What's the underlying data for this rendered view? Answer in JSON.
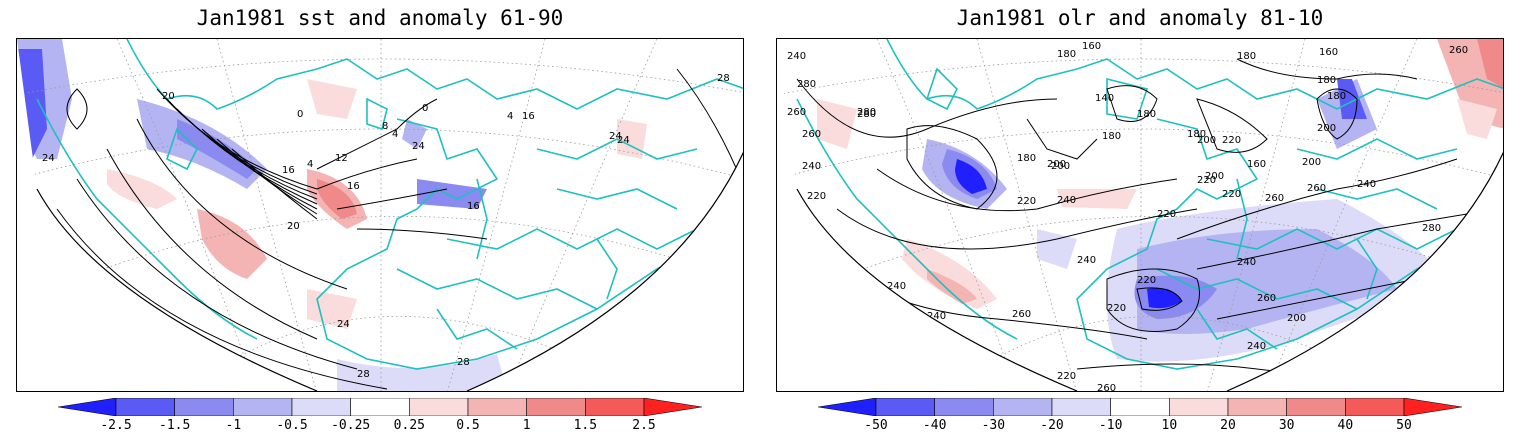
{
  "panels": [
    {
      "title": "Jan1981 sst and anomaly 61-90",
      "contour_labels": [
        "0",
        "4",
        "8",
        "12",
        "16",
        "20",
        "24",
        "28",
        "4",
        "0",
        "16",
        "24",
        "28",
        "20",
        "24",
        "16",
        "24",
        "28",
        "4",
        "16",
        "24"
      ],
      "colorbar": {
        "ticks": [
          "-2.5",
          "-1.5",
          "-1",
          "-0.5",
          "-0.25",
          "0.25",
          "0.5",
          "1",
          "1.5",
          "2.5"
        ],
        "colors": [
          "#2020ff",
          "#5a5af5",
          "#8a8af0",
          "#b4b4f3",
          "#dcdcf8",
          "#ffffff",
          "#fadcdc",
          "#f4b4b4",
          "#f08a8a",
          "#f55a5a",
          "#ff2020"
        ]
      }
    },
    {
      "title": "Jan1981 olr and anomaly 81-10",
      "contour_labels": [
        "240",
        "180",
        "160",
        "180",
        "260",
        "280",
        "280",
        "160",
        "180",
        "200",
        "260",
        "280",
        "140",
        "180",
        "180",
        "260",
        "240",
        "220",
        "200",
        "180",
        "200",
        "220",
        "160",
        "180",
        "200",
        "220",
        "240",
        "260",
        "280",
        "280",
        "200",
        "220",
        "240",
        "240",
        "220",
        "260",
        "240",
        "220",
        "240",
        "260",
        "220",
        "240",
        "260",
        "280",
        "260",
        "220",
        "240",
        "220",
        "260",
        "200",
        "180",
        "200",
        "220"
      ],
      "colorbar": {
        "ticks": [
          "-50",
          "-40",
          "-30",
          "-20",
          "-10",
          "10",
          "20",
          "30",
          "40",
          "50"
        ],
        "colors": [
          "#2020ff",
          "#5a5af5",
          "#8a8af0",
          "#b4b4f3",
          "#dcdcf8",
          "#ffffff",
          "#fadcdc",
          "#f4b4b4",
          "#f08a8a",
          "#f55a5a",
          "#ff2020"
        ]
      }
    }
  ],
  "colors": {
    "coastline": "#20c0c0",
    "contour": "#000000",
    "graticule": "#9a9a9a"
  }
}
